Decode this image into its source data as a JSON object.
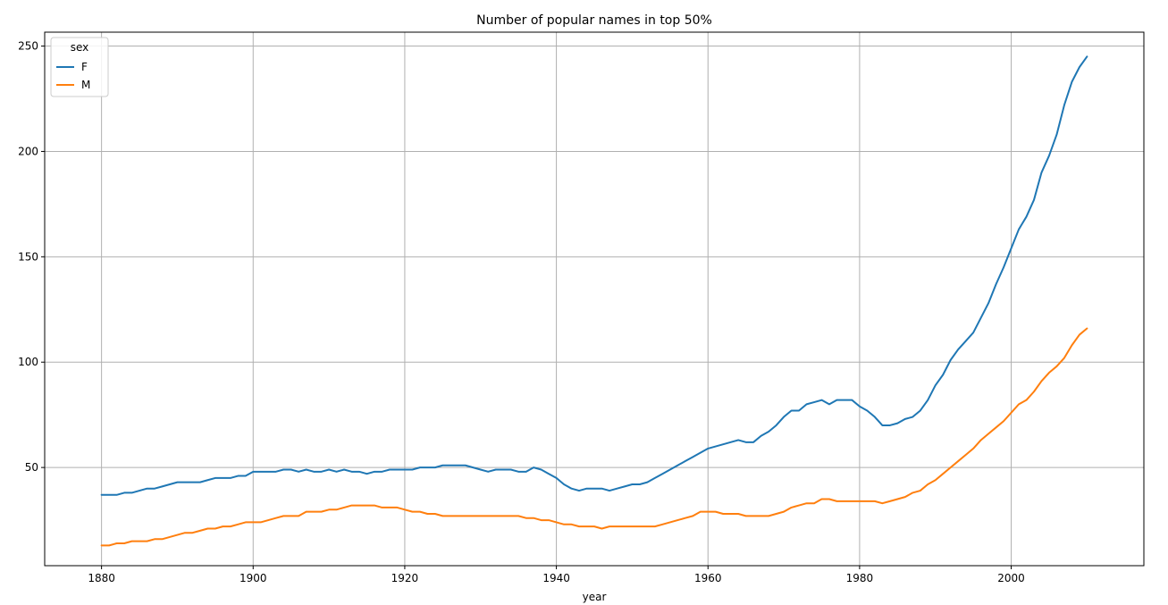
{
  "chart_data": {
    "type": "line",
    "title": "Number of popular names in top 50%",
    "xlabel": "year",
    "ylabel": "",
    "xlim": [
      1872.5,
      2017.5
    ],
    "ylim": [
      3.4,
      256.6
    ],
    "xticks": [
      1880,
      1900,
      1920,
      1940,
      1960,
      1980,
      2000
    ],
    "yticks": [
      50,
      100,
      150,
      200,
      250
    ],
    "grid": true,
    "legend": {
      "title": "sex",
      "placement": "top-left"
    },
    "x_start": 1880,
    "series": [
      {
        "name": "F",
        "color": "#1f77b4",
        "values": [
          37,
          37,
          37,
          38,
          38,
          39,
          40,
          40,
          41,
          42,
          43,
          43,
          43,
          43,
          44,
          45,
          45,
          45,
          46,
          46,
          48,
          48,
          48,
          48,
          49,
          49,
          48,
          49,
          48,
          48,
          49,
          48,
          49,
          48,
          48,
          47,
          48,
          48,
          49,
          49,
          49,
          49,
          50,
          50,
          50,
          51,
          51,
          51,
          51,
          50,
          49,
          48,
          49,
          49,
          49,
          48,
          48,
          50,
          49,
          47,
          45,
          42,
          40,
          39,
          40,
          40,
          40,
          39,
          40,
          41,
          42,
          42,
          43,
          45,
          47,
          49,
          51,
          53,
          55,
          57,
          59,
          60,
          61,
          62,
          63,
          62,
          62,
          65,
          67,
          70,
          74,
          77,
          77,
          80,
          81,
          82,
          80,
          82,
          82,
          82,
          79,
          77,
          74,
          70,
          70,
          71,
          73,
          74,
          77,
          82,
          89,
          94,
          101,
          106,
          110,
          114,
          121,
          128,
          137,
          145,
          154,
          163,
          169,
          177,
          190,
          198,
          208,
          222,
          233,
          240,
          245
        ]
      },
      {
        "name": "M",
        "color": "#ff7f0e",
        "values": [
          13,
          13,
          14,
          14,
          15,
          15,
          15,
          16,
          16,
          17,
          18,
          19,
          19,
          20,
          21,
          21,
          22,
          22,
          23,
          24,
          24,
          24,
          25,
          26,
          27,
          27,
          27,
          29,
          29,
          29,
          30,
          30,
          31,
          32,
          32,
          32,
          32,
          31,
          31,
          31,
          30,
          29,
          29,
          28,
          28,
          27,
          27,
          27,
          27,
          27,
          27,
          27,
          27,
          27,
          27,
          27,
          26,
          26,
          25,
          25,
          24,
          23,
          23,
          22,
          22,
          22,
          21,
          22,
          22,
          22,
          22,
          22,
          22,
          22,
          23,
          24,
          25,
          26,
          27,
          29,
          29,
          29,
          28,
          28,
          28,
          27,
          27,
          27,
          27,
          28,
          29,
          31,
          32,
          33,
          33,
          35,
          35,
          34,
          34,
          34,
          34,
          34,
          34,
          33,
          34,
          35,
          36,
          38,
          39,
          42,
          44,
          47,
          50,
          53,
          56,
          59,
          63,
          66,
          69,
          72,
          76,
          80,
          82,
          86,
          91,
          95,
          98,
          102,
          108,
          113,
          116
        ]
      }
    ]
  }
}
